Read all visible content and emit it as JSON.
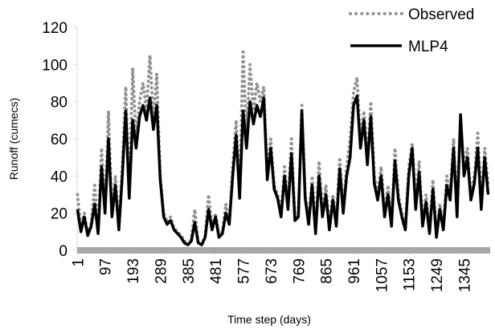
{
  "chart_data": {
    "type": "line",
    "x_label": "Time step (days)",
    "y_label": "Runoff (cumecs)",
    "x": [
      1,
      13,
      25,
      37,
      49,
      61,
      73,
      85,
      97,
      109,
      121,
      133,
      145,
      157,
      169,
      181,
      193,
      205,
      217,
      229,
      241,
      253,
      265,
      277,
      289,
      301,
      313,
      325,
      337,
      349,
      361,
      373,
      385,
      397,
      409,
      421,
      433,
      445,
      457,
      469,
      481,
      493,
      505,
      517,
      529,
      541,
      553,
      565,
      577,
      589,
      601,
      613,
      625,
      637,
      649,
      661,
      673,
      685,
      697,
      709,
      721,
      733,
      745,
      757,
      769,
      781,
      793,
      805,
      817,
      829,
      841,
      853,
      865,
      877,
      889,
      901,
      913,
      925,
      937,
      949,
      961,
      973,
      985,
      997,
      1009,
      1021,
      1033,
      1045,
      1057,
      1069,
      1081,
      1093,
      1105,
      1117,
      1129,
      1141,
      1153,
      1165,
      1177,
      1189,
      1201,
      1213,
      1225,
      1237,
      1249,
      1261,
      1273,
      1285,
      1297,
      1309,
      1321,
      1333,
      1345,
      1357,
      1369,
      1381,
      1393,
      1405,
      1417,
      1429
    ],
    "series": [
      {
        "name": "Observed",
        "color": "#929292",
        "style": "dotted",
        "values": [
          30,
          12,
          20,
          8,
          15,
          35,
          10,
          55,
          22,
          75,
          20,
          40,
          12,
          45,
          88,
          30,
          98,
          60,
          80,
          90,
          75,
          105,
          70,
          95,
          40,
          20,
          15,
          18,
          12,
          10,
          8,
          5,
          3,
          6,
          22,
          4,
          3,
          8,
          30,
          12,
          20,
          8,
          10,
          25,
          15,
          45,
          70,
          30,
          108,
          60,
          100,
          75,
          90,
          80,
          88,
          40,
          60,
          35,
          30,
          20,
          45,
          25,
          60,
          18,
          20,
          78,
          30,
          15,
          40,
          10,
          48,
          20,
          35,
          12,
          30,
          15,
          50,
          22,
          45,
          60,
          85,
          93,
          60,
          75,
          50,
          80,
          40,
          30,
          45,
          20,
          35,
          15,
          55,
          30,
          20,
          12,
          45,
          58,
          25,
          48,
          15,
          30,
          10,
          38,
          8,
          25,
          12,
          40,
          30,
          60,
          20,
          70,
          45,
          55,
          30,
          40,
          63,
          25,
          55,
          35
        ]
      },
      {
        "name": "MLP4",
        "color": "#000000",
        "style": "solid",
        "values": [
          22,
          10,
          18,
          8,
          13,
          25,
          9,
          45,
          20,
          60,
          18,
          35,
          11,
          40,
          75,
          28,
          70,
          55,
          72,
          78,
          70,
          82,
          65,
          78,
          38,
          18,
          14,
          16,
          11,
          9,
          7,
          4,
          3,
          5,
          15,
          4,
          3,
          7,
          22,
          11,
          18,
          7,
          9,
          20,
          14,
          40,
          62,
          28,
          75,
          55,
          80,
          68,
          78,
          72,
          82,
          38,
          55,
          33,
          28,
          18,
          40,
          22,
          52,
          16,
          18,
          75,
          28,
          14,
          35,
          9,
          40,
          18,
          30,
          11,
          27,
          13,
          44,
          20,
          40,
          50,
          78,
          83,
          55,
          70,
          46,
          72,
          36,
          27,
          40,
          18,
          30,
          13,
          48,
          27,
          18,
          11,
          40,
          55,
          22,
          42,
          13,
          26,
          9,
          33,
          7,
          22,
          11,
          35,
          27,
          55,
          18,
          73,
          40,
          50,
          27,
          36,
          55,
          22,
          50,
          30
        ]
      }
    ],
    "xlim": [
      0,
      1436
    ],
    "xticks": [
      1,
      97,
      193,
      289,
      385,
      481,
      577,
      673,
      769,
      865,
      961,
      1057,
      1153,
      1249,
      1345
    ],
    "ylim": [
      0,
      120
    ],
    "yticks": [
      0,
      20,
      40,
      60,
      80,
      100,
      120
    ],
    "legend": "top-right"
  }
}
